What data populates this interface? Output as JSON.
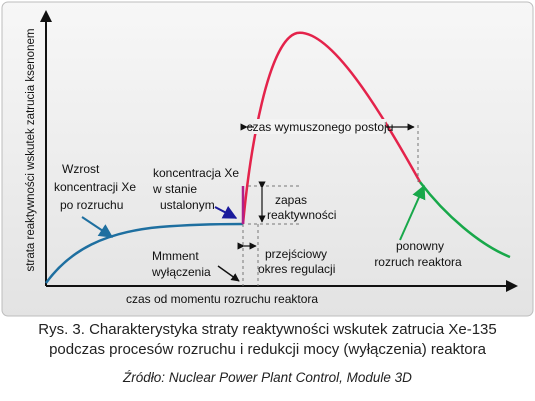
{
  "diagram": {
    "y_axis_label": "strata reaktywności wskutek zatrucia ksenonem",
    "x_axis_label": "czas od momentu rozruchu reaktora",
    "annotations": {
      "growth": [
        "Wzrost",
        "koncentracji Xe",
        "po rozruchu"
      ],
      "steady": [
        "koncentracja Xe",
        "w stanie",
        "ustalonym"
      ],
      "shutdown_moment": [
        "Mmment",
        "wyłączenia"
      ],
      "forced_outage": "czas wymuszonego postoju",
      "reactivity_margin": [
        "zapas",
        "reaktywności"
      ],
      "transient": [
        "przejściowy",
        "okres regulacji"
      ],
      "restart": [
        "ponowny",
        "rozruch reaktora"
      ]
    },
    "colors": {
      "buildup": "#1e6fa0",
      "peak": "#e4234b",
      "restart": "#18a84a",
      "steady_arrow": "#1a1a9c",
      "axis": "#111111"
    }
  },
  "caption": {
    "line1": "Rys. 3. Charakterystyka straty reaktywności wskutek zatrucia Xe-135",
    "line2": "podczas procesów rozruchu i redukcji mocy (wyłączenia) reaktora",
    "source": "Źródło: Nuclear Power Plant Control, Module 3D"
  }
}
